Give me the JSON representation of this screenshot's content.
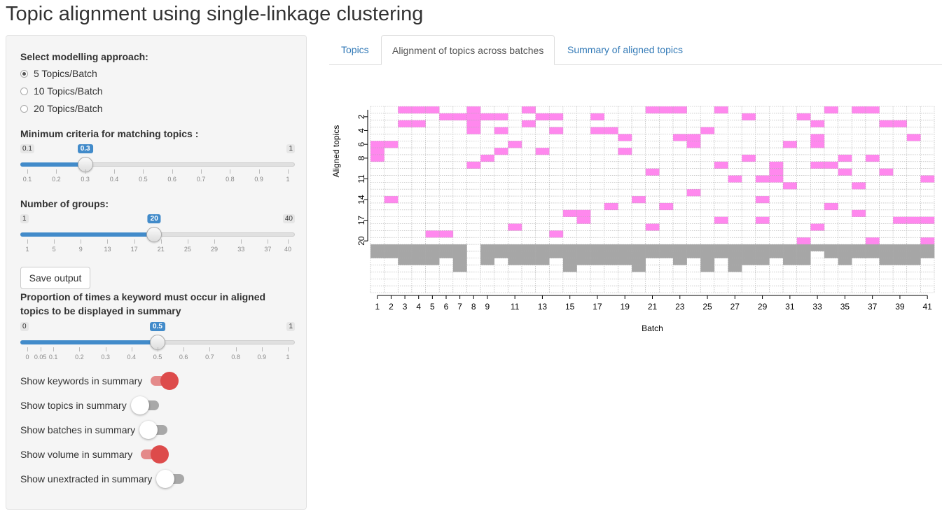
{
  "title": "Topic alignment using single-linkage clustering",
  "sidebar": {
    "approach_label": "Select modelling approach:",
    "approach_options": [
      "5 Topics/Batch",
      "10 Topics/Batch",
      "20 Topics/Batch"
    ],
    "approach_selected": 0,
    "criteria_label": "Minimum criteria for matching topics :",
    "criteria_slider": {
      "min": 0.1,
      "max": 1,
      "value": 0.3,
      "min_label": "0.1",
      "max_label": "1",
      "value_label": "0.3",
      "ticks": [
        "0.1",
        "0.2",
        "0.3",
        "0.4",
        "0.5",
        "0.6",
        "0.7",
        "0.8",
        "0.9",
        "1"
      ]
    },
    "groups_label": "Number of groups:",
    "groups_slider": {
      "min": 1,
      "max": 40,
      "value": 20,
      "min_label": "1",
      "max_label": "40",
      "value_label": "20",
      "ticks": [
        "1",
        "5",
        "9",
        "13",
        "17",
        "21",
        "25",
        "29",
        "33",
        "37",
        "40"
      ]
    },
    "save_button": "Save output",
    "proportion_label": "Proportion of times a keyword must occur in aligned topics to be displayed in summary",
    "proportion_slider": {
      "min": 0,
      "max": 1,
      "value": 0.5,
      "min_label": "0",
      "max_label": "1",
      "value_label": "0.5",
      "ticks": [
        "0",
        "0.05",
        "0.1",
        "0.2",
        "0.3",
        "0.4",
        "0.5",
        "0.6",
        "0.7",
        "0.8",
        "0.9",
        "1"
      ]
    },
    "switches": [
      {
        "label": "Show keywords in summary",
        "on": true
      },
      {
        "label": "Show topics in summary",
        "on": false
      },
      {
        "label": "Show batches in summary",
        "on": false
      },
      {
        "label": "Show volume in summary",
        "on": true
      },
      {
        "label": "Show unextracted in summary",
        "on": false
      }
    ]
  },
  "tabs": [
    {
      "label": "Topics",
      "active": false
    },
    {
      "label": "Alignment of topics across batches",
      "active": true
    },
    {
      "label": "Summary of aligned topics",
      "active": false
    }
  ],
  "chart_data": {
    "type": "heatmap",
    "xlabel": "Batch",
    "ylabel": "Aligned topics",
    "n_batches": 41,
    "n_topics": 20,
    "x_tick_labels": [
      "1",
      "2",
      "3",
      "4",
      "5",
      "6",
      "7",
      "8",
      "9",
      "11",
      "13",
      "15",
      "17",
      "19",
      "21",
      "23",
      "25",
      "27",
      "29",
      "31",
      "33",
      "35",
      "37",
      "39",
      "41"
    ],
    "y_tick_labels": [
      "2",
      "4",
      "6",
      "8",
      "11",
      "14",
      "17",
      "20"
    ],
    "colors": {
      "aligned": "#ff88ee",
      "unaligned": "#a6a6a6",
      "grid": "#aaaaaa"
    },
    "aligned_cells": [
      [
        1,
        6
      ],
      [
        1,
        7
      ],
      [
        1,
        8
      ],
      [
        2,
        6
      ],
      [
        2,
        14
      ],
      [
        3,
        1
      ],
      [
        3,
        3
      ],
      [
        4,
        1
      ],
      [
        4,
        3
      ],
      [
        5,
        1
      ],
      [
        5,
        19
      ],
      [
        6,
        2
      ],
      [
        6,
        19
      ],
      [
        7,
        2
      ],
      [
        8,
        1
      ],
      [
        8,
        2
      ],
      [
        8,
        3
      ],
      [
        8,
        4
      ],
      [
        8,
        9
      ],
      [
        9,
        2
      ],
      [
        9,
        8
      ],
      [
        10,
        2
      ],
      [
        10,
        4
      ],
      [
        10,
        7
      ],
      [
        11,
        6
      ],
      [
        11,
        18
      ],
      [
        12,
        1
      ],
      [
        12,
        3
      ],
      [
        13,
        2
      ],
      [
        13,
        7
      ],
      [
        14,
        2
      ],
      [
        14,
        4
      ],
      [
        14,
        19
      ],
      [
        15,
        16
      ],
      [
        16,
        16
      ],
      [
        16,
        17
      ],
      [
        17,
        2
      ],
      [
        17,
        4
      ],
      [
        18,
        4
      ],
      [
        18,
        15
      ],
      [
        19,
        5
      ],
      [
        19,
        7
      ],
      [
        20,
        14
      ],
      [
        21,
        1
      ],
      [
        21,
        10
      ],
      [
        21,
        18
      ],
      [
        22,
        1
      ],
      [
        22,
        15
      ],
      [
        23,
        1
      ],
      [
        23,
        5
      ],
      [
        24,
        5
      ],
      [
        24,
        6
      ],
      [
        24,
        13
      ],
      [
        25,
        4
      ],
      [
        26,
        1
      ],
      [
        26,
        9
      ],
      [
        26,
        17
      ],
      [
        27,
        11
      ],
      [
        28,
        2
      ],
      [
        28,
        8
      ],
      [
        29,
        11
      ],
      [
        29,
        14
      ],
      [
        29,
        17
      ],
      [
        30,
        9
      ],
      [
        30,
        10
      ],
      [
        30,
        11
      ],
      [
        31,
        6
      ],
      [
        31,
        12
      ],
      [
        32,
        2
      ],
      [
        32,
        20
      ],
      [
        33,
        3
      ],
      [
        33,
        5
      ],
      [
        33,
        6
      ],
      [
        33,
        9
      ],
      [
        33,
        18
      ],
      [
        34,
        1
      ],
      [
        34,
        9
      ],
      [
        34,
        15
      ],
      [
        35,
        8
      ],
      [
        35,
        10
      ],
      [
        36,
        1
      ],
      [
        36,
        12
      ],
      [
        36,
        16
      ],
      [
        37,
        1
      ],
      [
        37,
        8
      ],
      [
        37,
        20
      ],
      [
        38,
        10
      ],
      [
        38,
        3
      ],
      [
        39,
        3
      ],
      [
        39,
        17
      ],
      [
        40,
        5
      ],
      [
        40,
        17
      ],
      [
        41,
        11
      ],
      [
        41,
        17
      ],
      [
        41,
        20
      ]
    ],
    "unaligned_by_batch": [
      2,
      2,
      3,
      3,
      3,
      2,
      4,
      0,
      3,
      2,
      3,
      3,
      3,
      2,
      4,
      3,
      3,
      3,
      3,
      4,
      2,
      2,
      3,
      2,
      4,
      2,
      4,
      3,
      3,
      2,
      3,
      3,
      1,
      2,
      3,
      2,
      2,
      3,
      3,
      3,
      2
    ]
  }
}
